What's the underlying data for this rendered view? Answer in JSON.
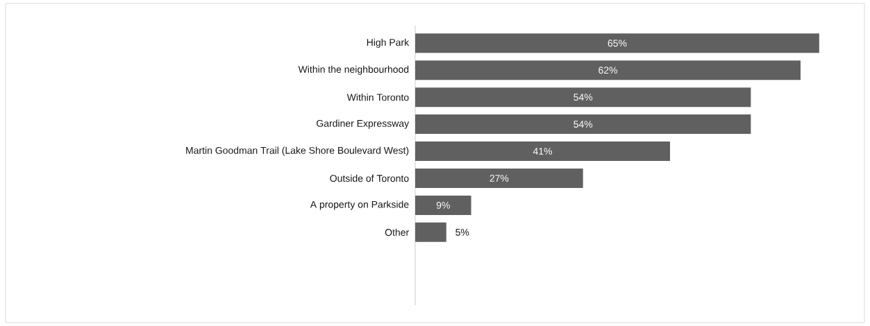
{
  "chart_data": {
    "type": "bar",
    "orientation": "horizontal",
    "categories": [
      "High Park",
      "Within the neighbourhood",
      "Within Toronto",
      "Gardiner Expressway",
      "Martin Goodman Trail (Lake Shore Boulevard West)",
      "Outside of Toronto",
      "A property on Parkside",
      "Other"
    ],
    "values": [
      65,
      62,
      54,
      54,
      41,
      27,
      9,
      5
    ],
    "value_labels": [
      "65%",
      "62%",
      "54%",
      "54%",
      "41%",
      "27%",
      "9%",
      "5%"
    ],
    "color": "#606060"
  }
}
